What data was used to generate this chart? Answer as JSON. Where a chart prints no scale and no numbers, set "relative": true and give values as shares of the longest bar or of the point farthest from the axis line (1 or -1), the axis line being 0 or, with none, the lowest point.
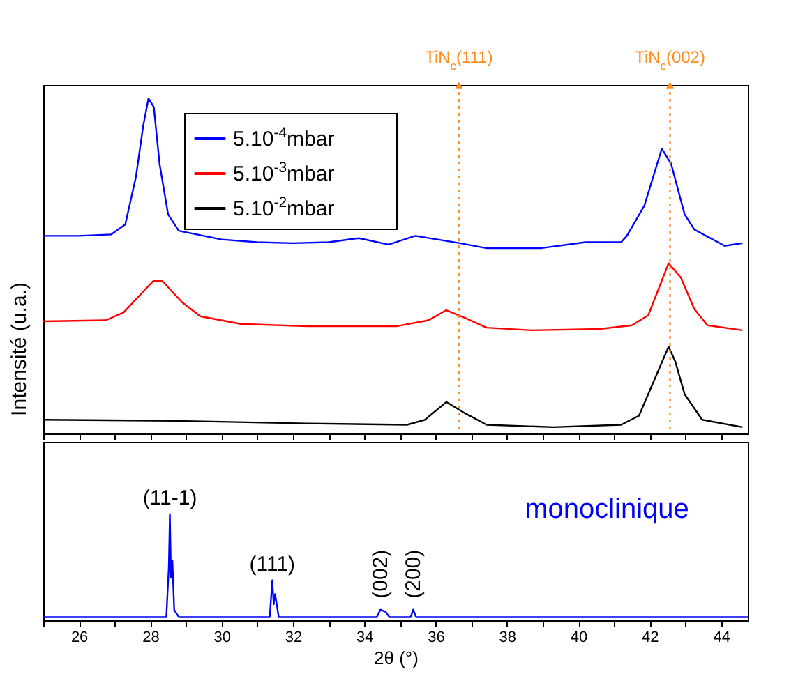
{
  "chart_data": [
    {
      "type": "line",
      "ylabel": "Intensité (u.a.)",
      "relative": true,
      "xlim": [
        25,
        44.75
      ],
      "xticks": [
        {
          "value": 25,
          "label": null
        },
        26,
        {
          "value": 27,
          "label": null
        },
        28,
        {
          "value": 29,
          "label": null
        },
        30,
        {
          "value": 31,
          "label": null
        },
        32,
        {
          "value": 33,
          "label": null
        },
        34,
        {
          "value": 35,
          "label": null
        },
        36,
        {
          "value": 37,
          "label": null
        },
        38,
        {
          "value": 39,
          "label": null
        },
        40,
        {
          "value": 41,
          "label": null
        },
        42,
        {
          "value": 43,
          "label": null
        },
        44
      ],
      "tick_labels": false,
      "legend": "top left",
      "ref_lines": [
        {
          "axis": "x",
          "value": 36.65,
          "label": "TiN$_{c}$(111)",
          "color": "#ff8c1a",
          "line_style": "dotted"
        },
        {
          "axis": "x",
          "value": 42.57,
          "label": "TiN$_{c}$(002)",
          "color": "#ff8c1a",
          "line_style": "dotted"
        }
      ],
      "series": [
        {
          "name": "5.10$^{-4}$mbar",
          "color": "#0000ff",
          "x": [
            25,
            26,
            26.9,
            27.3,
            27.6,
            27.8,
            27.95,
            28.1,
            28.26,
            28.5,
            28.8,
            29.5,
            30,
            31,
            32,
            33,
            33.85,
            34.68,
            35.43,
            36.68,
            37.43,
            38.94,
            40.2,
            41.2,
            41.36,
            41.85,
            42.34,
            42.6,
            42.98,
            43.25,
            44.1,
            44.6
          ],
          "values": [
            0.59,
            0.59,
            0.594,
            0.624,
            0.767,
            0.917,
            1,
            0.974,
            0.805,
            0.654,
            0.605,
            0.59,
            0.579,
            0.571,
            0.568,
            0.571,
            0.583,
            0.564,
            0.59,
            0.568,
            0.553,
            0.553,
            0.571,
            0.571,
            0.59,
            0.68,
            0.85,
            0.805,
            0.654,
            0.609,
            0.56,
            0.568
          ]
        },
        {
          "name": "5.10$^{-3}$mbar",
          "color": "#ff0000",
          "x": [
            25,
            26.75,
            27.25,
            28.08,
            28.34,
            28.9,
            29.4,
            30.53,
            32.4,
            34.9,
            35.8,
            36.3,
            36.8,
            37.43,
            38.7,
            40.6,
            41.5,
            41.96,
            42.53,
            42.87,
            43.25,
            43.62,
            44.6
          ],
          "values": [
            0.335,
            0.338,
            0.361,
            0.455,
            0.455,
            0.391,
            0.35,
            0.327,
            0.32,
            0.32,
            0.338,
            0.368,
            0.346,
            0.316,
            0.308,
            0.312,
            0.323,
            0.353,
            0.508,
            0.466,
            0.372,
            0.323,
            0.308
          ]
        },
        {
          "name": "5.10$^{-2}$mbar",
          "color": "#000000",
          "x": [
            25,
            28.64,
            32.4,
            35.2,
            35.7,
            36.3,
            36.83,
            37.43,
            39.3,
            41.2,
            41.7,
            42.15,
            42.53,
            42.72,
            42.98,
            43.47,
            44.6
          ],
          "values": [
            0.041,
            0.038,
            0.03,
            0.026,
            0.041,
            0.094,
            0.06,
            0.026,
            0.019,
            0.026,
            0.053,
            0.165,
            0.259,
            0.214,
            0.117,
            0.041,
            0.019
          ]
        }
      ]
    },
    {
      "type": "line",
      "xlabel": "2θ (°)",
      "relative": true,
      "xlim": [
        25,
        44.75
      ],
      "xticks": [
        {
          "value": 25,
          "label": null
        },
        26,
        {
          "value": 27,
          "label": null
        },
        28,
        {
          "value": 29,
          "label": null
        },
        30,
        {
          "value": 31,
          "label": null
        },
        32,
        {
          "value": 33,
          "label": null
        },
        34,
        {
          "value": 35,
          "label": null
        },
        36,
        {
          "value": 37,
          "label": null
        },
        38,
        {
          "value": 39,
          "label": null
        },
        40,
        {
          "value": 41,
          "label": null
        },
        42,
        {
          "value": 43,
          "label": null
        },
        44
      ],
      "tick_labels": "x",
      "annotations": [
        {
          "text": "(11-1)",
          "x": 28.55,
          "y": 1
        },
        {
          "text": "(111)",
          "x": 31.42,
          "y": 0.376
        },
        {
          "text": "(002)",
          "x": 34.45,
          "y": 0.1
        },
        {
          "text": "(200)",
          "x": 35.37,
          "y": 0.1
        }
      ],
      "series": [
        {
          "name": "monoclinique",
          "color": "#0000ff",
          "x": [
            25,
            28.45,
            28.52,
            28.55,
            28.58,
            28.62,
            28.67,
            28.8,
            31.35,
            31.42,
            31.46,
            31.5,
            31.6,
            34.35,
            34.45,
            34.6,
            34.7,
            35.3,
            35.37,
            35.45,
            44.75
          ],
          "values": [
            0.03,
            0.03,
            0.5,
            1,
            0.4,
            0.565,
            0.1,
            0.03,
            0.03,
            0.376,
            0.15,
            0.247,
            0.03,
            0.03,
            0.1,
            0.08,
            0.03,
            0.03,
            0.1,
            0.03,
            0.03
          ]
        }
      ]
    }
  ]
}
